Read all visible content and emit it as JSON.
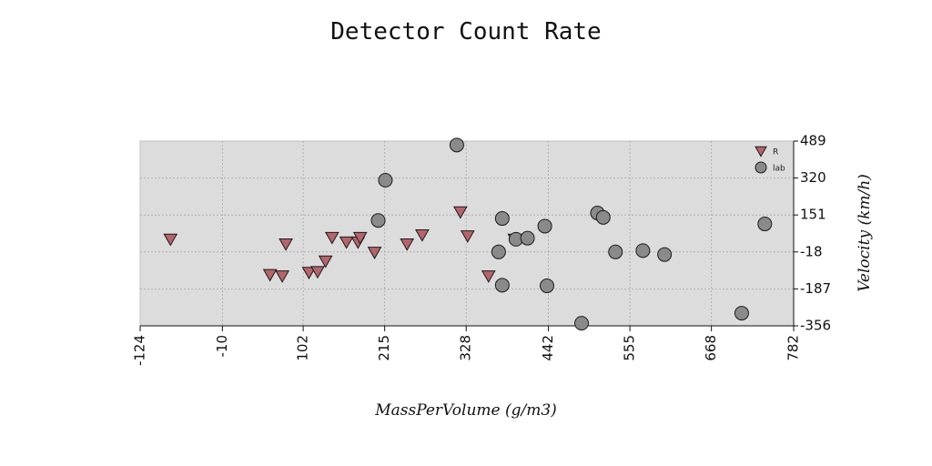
{
  "chart_data": {
    "type": "scatter",
    "title": "Detector Count Rate",
    "xlabel": "MassPerVolume (g/m3)",
    "ylabel": "Velocity (km/h)",
    "xlim": [
      -124,
      782
    ],
    "ylim": [
      -356,
      489
    ],
    "x_ticks": [
      "-124",
      "-10",
      "102",
      "215",
      "328",
      "442",
      "555",
      "668",
      "782"
    ],
    "y_ticks": [
      "489",
      "320",
      "151",
      "-18",
      "-187",
      "-356"
    ],
    "grid": true,
    "legend_position": "top-right",
    "series": [
      {
        "name": "R",
        "marker": "triangle-down",
        "color": "#b5646b",
        "points": [
          [
            -82,
            40
          ],
          [
            56,
            -122
          ],
          [
            73,
            -128
          ],
          [
            78,
            18
          ],
          [
            110,
            -112
          ],
          [
            122,
            -108
          ],
          [
            133,
            -60
          ],
          [
            142,
            48
          ],
          [
            162,
            27
          ],
          [
            178,
            27
          ],
          [
            181,
            48
          ],
          [
            201,
            -20
          ],
          [
            246,
            18
          ],
          [
            267,
            60
          ],
          [
            320,
            165
          ],
          [
            330,
            55
          ],
          [
            359,
            -128
          ],
          [
            395,
            40
          ]
        ]
      },
      {
        "name": "lab",
        "marker": "circle",
        "color": "#8a8a8a",
        "points": [
          [
            206,
            126
          ],
          [
            216,
            310
          ],
          [
            315,
            471
          ],
          [
            373,
            -18
          ],
          [
            378,
            135
          ],
          [
            378,
            -170
          ],
          [
            397,
            40
          ],
          [
            413,
            45
          ],
          [
            437,
            100
          ],
          [
            440,
            -173
          ],
          [
            488,
            -344
          ],
          [
            510,
            160
          ],
          [
            518,
            140
          ],
          [
            535,
            -18
          ],
          [
            573,
            -12
          ],
          [
            603,
            -30
          ],
          [
            710,
            -298
          ],
          [
            742,
            110
          ]
        ]
      }
    ]
  }
}
